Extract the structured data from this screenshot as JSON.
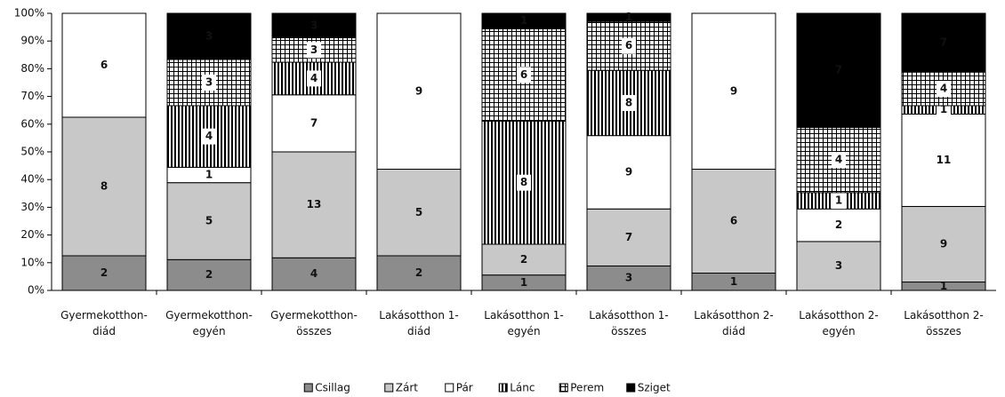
{
  "chart_data": {
    "type": "bar",
    "stacking": "percent",
    "categories": [
      "Gyermekotthon-diád",
      "Gyermekotthon-egyén",
      "Gyermekotthon-összes",
      "Lakásotthon 1-diád",
      "Lakásotthon 1-egyén",
      "Lakásotthon 1-összes",
      "Lakásotthon 2-diád",
      "Lakásotthon 2-egyén",
      "Lakásotthon 2-összes"
    ],
    "series": [
      {
        "name": "Csillag",
        "color": "#8c8c8c",
        "pattern": null,
        "values": [
          2,
          2,
          4,
          2,
          1,
          3,
          1,
          null,
          1
        ]
      },
      {
        "name": "Zárt",
        "color": "#c8c8c8",
        "pattern": null,
        "values": [
          8,
          5,
          13,
          5,
          2,
          7,
          6,
          3,
          9
        ]
      },
      {
        "name": "Pár",
        "color": "#ffffff",
        "pattern": null,
        "values": [
          6,
          1,
          7,
          9,
          null,
          9,
          9,
          2,
          11
        ]
      },
      {
        "name": "Lánc",
        "color": "#000000",
        "pattern": "vertical-lines",
        "values": [
          null,
          4,
          4,
          null,
          8,
          8,
          null,
          1,
          1
        ]
      },
      {
        "name": "Perem",
        "color": "#000000",
        "pattern": "grid",
        "values": [
          null,
          3,
          3,
          null,
          6,
          6,
          null,
          4,
          4
        ]
      },
      {
        "name": "Sziget",
        "color": "#000000",
        "pattern": null,
        "values": [
          null,
          3,
          3,
          null,
          1,
          1,
          null,
          7,
          7
        ]
      }
    ],
    "ylim": [
      0,
      100
    ],
    "yticks": [
      {
        "value": 0,
        "label": "0%"
      },
      {
        "value": 10,
        "label": "10%"
      },
      {
        "value": 20,
        "label": "20%"
      },
      {
        "value": 30,
        "label": "30%"
      },
      {
        "value": 40,
        "label": "40%"
      },
      {
        "value": 50,
        "label": "50%"
      },
      {
        "value": 60,
        "label": "60%"
      },
      {
        "value": 70,
        "label": "70%"
      },
      {
        "value": 80,
        "label": "80%"
      },
      {
        "value": 90,
        "label": "90%"
      },
      {
        "value": 100,
        "label": "100%"
      }
    ],
    "grid": false,
    "legend": "bottom"
  }
}
